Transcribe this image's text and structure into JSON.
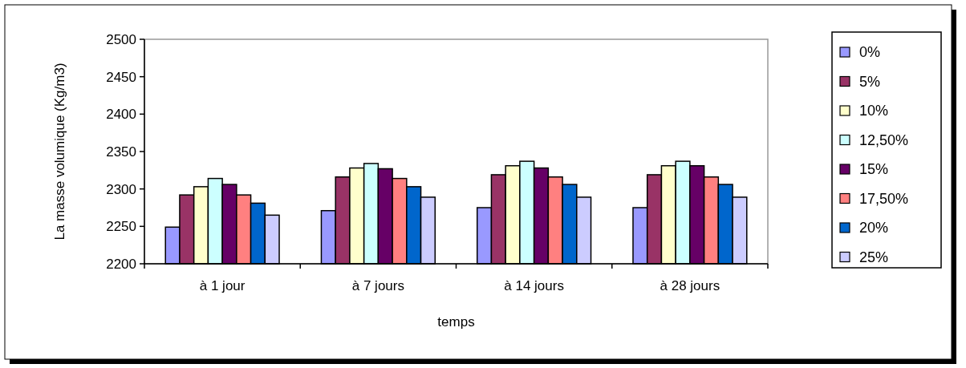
{
  "chart_data": {
    "type": "bar",
    "xlabel": "temps",
    "ylabel": "La masse volumique (Kg/m3)",
    "categories": [
      "à 1 jour",
      "à 7 jours",
      "à 14 jours",
      "à 28 jours"
    ],
    "series": [
      {
        "name": "0%",
        "color": "#9999ff",
        "values": [
          2249,
          2271,
          2275,
          2275
        ]
      },
      {
        "name": "5%",
        "color": "#993366",
        "values": [
          2292,
          2316,
          2319,
          2319
        ]
      },
      {
        "name": "10%",
        "color": "#ffffcc",
        "values": [
          2303,
          2328,
          2331,
          2331
        ]
      },
      {
        "name": "12,50%",
        "color": "#ccffff",
        "values": [
          2314,
          2334,
          2337,
          2337
        ]
      },
      {
        "name": "15%",
        "color": "#660066",
        "values": [
          2306,
          2327,
          2328,
          2331
        ]
      },
      {
        "name": "17,50%",
        "color": "#ff8080",
        "values": [
          2292,
          2314,
          2316,
          2316
        ]
      },
      {
        "name": "20%",
        "color": "#0066cc",
        "values": [
          2281,
          2303,
          2306,
          2306
        ]
      },
      {
        "name": "25%",
        "color": "#ccccff",
        "values": [
          2265,
          2289,
          2289,
          2289
        ]
      }
    ],
    "ylim": [
      2200,
      2500
    ],
    "yticks": [
      2200,
      2250,
      2300,
      2350,
      2400,
      2450,
      2500
    ],
    "legend": "right",
    "grid": false
  }
}
